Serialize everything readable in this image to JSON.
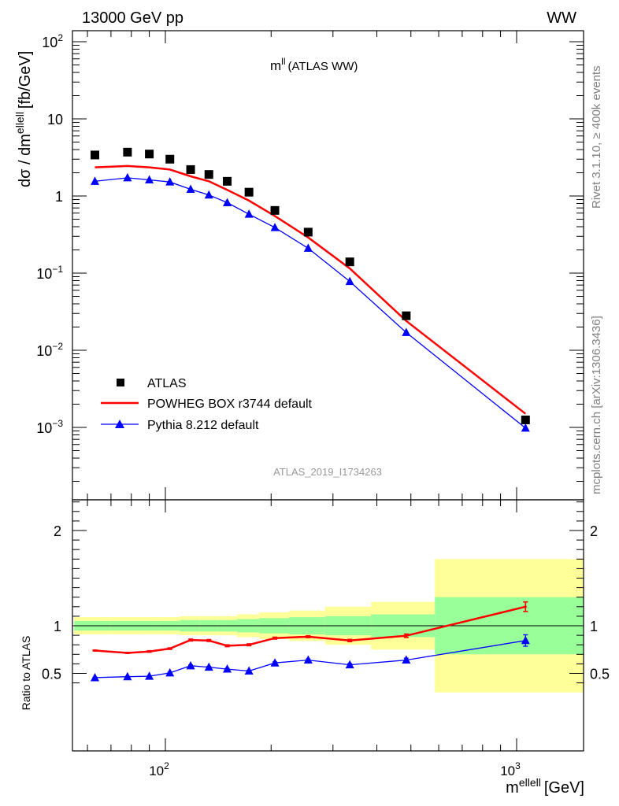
{
  "header": {
    "left": "13000 GeV pp",
    "right": "WW"
  },
  "side_labels": {
    "rivet": "Rivet 3.1.10, ≥ 400k events",
    "mcplots": "mcplots.cern.ch [arXiv:1306.3436]"
  },
  "chart_data": {
    "type": "line",
    "title_main": "m",
    "title_sup": "ll",
    "title_rest": "(ATLAS WW)",
    "watermark": "ATLAS_2019_I1734263",
    "ylabel": "dσ / dm",
    "ylabel_sup": "ellell",
    "ylabel_unit": "[fb/GeV]",
    "xlabel": "m",
    "xlabel_sup": "ellell",
    "xlabel_unit": "[GeV]",
    "ratio_ylabel": "Ratio to ATLAS",
    "xscale": "log",
    "xlim": [
      55,
      1550
    ],
    "yscale": "log",
    "ylim": [
      0.00015,
      160
    ],
    "ratio_ylim": [
      0.38,
      2.3
    ],
    "grid": false,
    "legend_position": "bottom-left",
    "x": [
      63,
      78,
      90,
      103,
      118,
      133,
      150,
      173,
      205,
      255,
      335,
      485,
      1060
    ],
    "bin_edges": [
      55,
      70,
      85,
      95,
      110,
      125,
      140,
      160,
      185,
      225,
      285,
      385,
      585,
      1550
    ],
    "data_uncertainty_inner": [
      0.05,
      0.05,
      0.05,
      0.05,
      0.06,
      0.06,
      0.06,
      0.07,
      0.08,
      0.09,
      0.1,
      0.12,
      0.3
    ],
    "data_uncertainty_outer": [
      0.09,
      0.09,
      0.09,
      0.09,
      0.1,
      0.1,
      0.1,
      0.12,
      0.14,
      0.16,
      0.2,
      0.25,
      0.7
    ],
    "series": [
      {
        "name": "ATLAS",
        "marker": "square",
        "color": "#000000",
        "values": [
          3.4,
          3.7,
          3.5,
          3.0,
          2.2,
          1.9,
          1.55,
          1.12,
          0.65,
          0.34,
          0.14,
          0.028,
          0.00125
        ]
      },
      {
        "name": "POWHEG BOX r3744 default",
        "marker": "line",
        "color": "#ff0000",
        "values": [
          2.35,
          2.45,
          2.35,
          2.2,
          1.8,
          1.55,
          1.2,
          0.87,
          0.55,
          0.29,
          0.115,
          0.024,
          0.0015
        ],
        "ratio": [
          0.74,
          0.715,
          0.73,
          0.76,
          0.85,
          0.845,
          0.79,
          0.8,
          0.87,
          0.885,
          0.845,
          0.895,
          1.2
        ],
        "ratio_err": [
          0.005,
          0.005,
          0.008,
          0.008,
          0.01,
          0.01,
          0.01,
          0.01,
          0.01,
          0.01,
          0.012,
          0.018,
          0.05
        ]
      },
      {
        "name": "Pythia 8.212 default",
        "marker": "triangle",
        "color": "#0000ff",
        "values": [
          1.55,
          1.72,
          1.62,
          1.52,
          1.22,
          1.03,
          0.82,
          0.58,
          0.39,
          0.21,
          0.078,
          0.017,
          0.00098
        ],
        "ratio": [
          0.455,
          0.465,
          0.47,
          0.505,
          0.58,
          0.565,
          0.545,
          0.525,
          0.61,
          0.64,
          0.59,
          0.64,
          0.845
        ],
        "ratio_err": [
          0.005,
          0.005,
          0.006,
          0.007,
          0.008,
          0.008,
          0.008,
          0.008,
          0.01,
          0.01,
          0.012,
          0.02,
          0.06
        ]
      }
    ]
  }
}
